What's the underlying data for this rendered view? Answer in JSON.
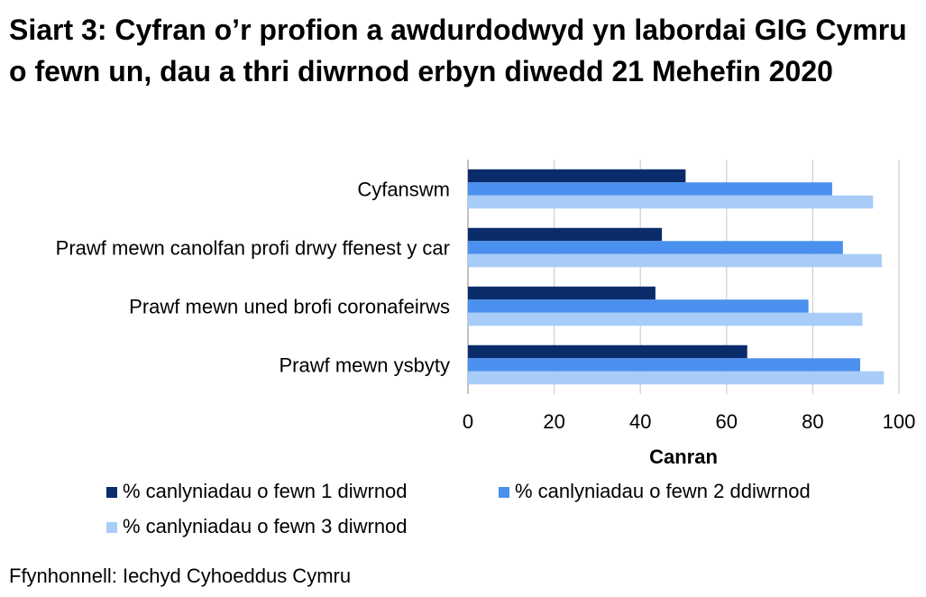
{
  "chart_data": {
    "type": "bar",
    "orientation": "horizontal",
    "title": "Siart 3: Cyfran o’r profion a awdurdodwyd yn labordai GIG Cymru o fewn un, dau a thri diwrnod erbyn diwedd 21 Mehefin 2020",
    "xlabel": "Canran",
    "ylabel": "",
    "xlim": [
      0,
      100
    ],
    "xticks": [
      0,
      20,
      40,
      60,
      80,
      100
    ],
    "grid": true,
    "legend_position": "bottom",
    "categories": [
      "Cyfanswm",
      "Prawf mewn canolfan profi drwy ffenest y car",
      "Prawf mewn uned brofi coronafeirws",
      "Prawf mewn ysbyty"
    ],
    "series": [
      {
        "name": "% canlyniadau o fewn 1 diwrnod",
        "color": "#0a2c6b",
        "values": [
          50.5,
          45,
          43.5,
          64.8
        ]
      },
      {
        "name": "% canlyniadau o fewn 2 ddiwrnod",
        "color": "#4a90ee",
        "values": [
          84.5,
          87,
          79,
          91
        ]
      },
      {
        "name": "% canlyniadau o fewn 3 diwrnod",
        "color": "#a7ccf7",
        "values": [
          94,
          96,
          91.5,
          96.5
        ]
      }
    ]
  },
  "source": "Ffynhonnell: Iechyd Cyhoeddus Cymru"
}
